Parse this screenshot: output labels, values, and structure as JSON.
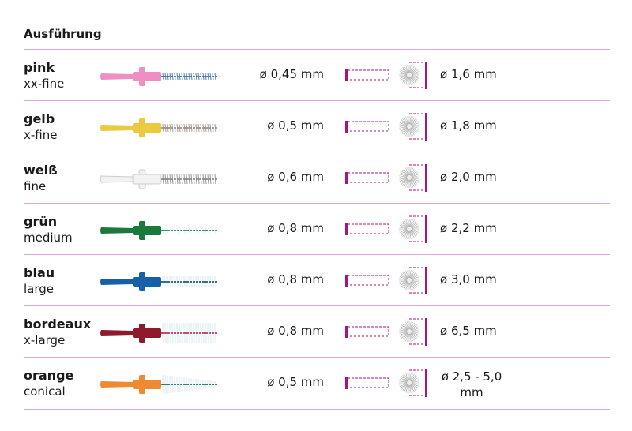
{
  "title": "Ausführung",
  "colors": {
    "accent": "#a3157f",
    "divider": "#d9a8d4"
  },
  "rows": [
    {
      "color_name": "pink",
      "size_name": "xx-fine",
      "wire": "ø 0,45 mm",
      "size": "ø 1,6 mm",
      "handle": "#ee8fc4",
      "filament": "#3a6fb0",
      "bristle_length": "xx-fine"
    },
    {
      "color_name": "gelb",
      "size_name": "x-fine",
      "wire": "ø 0,5 mm",
      "size": "ø 1,8 mm",
      "handle": "#ecc93e",
      "filament": "#9a8f86",
      "bristle_length": "x-fine"
    },
    {
      "color_name": "weiß",
      "size_name": "fine",
      "wire": "ø 0,6 mm",
      "size": "ø 2,0 mm",
      "handle": "#f2f2f2",
      "filament": "#8a8a8a",
      "bristle_length": "fine"
    },
    {
      "color_name": "grün",
      "size_name": "medium",
      "wire": "ø 0,8 mm",
      "size": "ø 2,2 mm",
      "handle": "#1a7a3a",
      "filament": "#2a7f7a",
      "bristle_length": "medium"
    },
    {
      "color_name": "blau",
      "size_name": "large",
      "wire": "ø 0,8 mm",
      "size": "ø 3,0 mm",
      "handle": "#1660a8",
      "filament": "#1f5d62",
      "bristle_length": "large"
    },
    {
      "color_name": "bordeaux",
      "size_name": "x-large",
      "wire": "ø 0,8 mm",
      "size": "ø 6,5 mm",
      "handle": "#8e1a2c",
      "filament": "#b33a5a",
      "bristle_length": "x-large"
    },
    {
      "color_name": "orange",
      "size_name": "conical",
      "wire": "ø 0,5 mm",
      "size": "ø 2,5 - 5,0 mm",
      "handle": "#f08a32",
      "filament": "#1f6d62",
      "bristle_length": "conical"
    }
  ]
}
